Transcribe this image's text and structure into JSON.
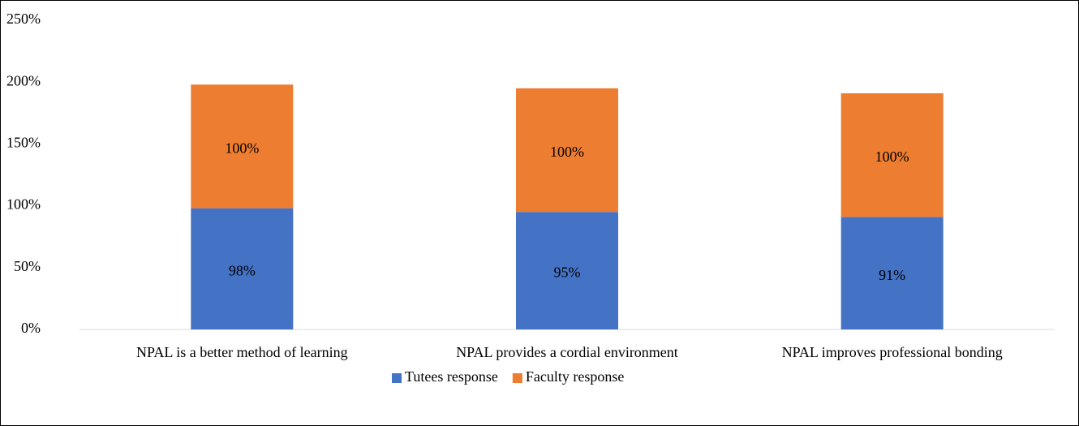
{
  "chart_data": {
    "type": "stacked_bar",
    "categories": [
      "NPAL is a better method of learning",
      "NPAL provides a cordial environment",
      "NPAL improves professional bonding"
    ],
    "series": [
      {
        "name": "Tutees response",
        "color": "#4472c4",
        "values": [
          98,
          95,
          91
        ],
        "value_labels": [
          "98%",
          "95%",
          "91%"
        ]
      },
      {
        "name": "Faculty response",
        "color": "#ed7d31",
        "values": [
          100,
          100,
          100
        ],
        "value_labels": [
          "100%",
          "100%",
          "100%"
        ]
      }
    ],
    "ylim": [
      0,
      250
    ],
    "yticks": [
      {
        "value": 0,
        "label": "0%"
      },
      {
        "value": 50,
        "label": "50%"
      },
      {
        "value": 100,
        "label": "100%"
      },
      {
        "value": 150,
        "label": "150%"
      },
      {
        "value": 200,
        "label": "200%"
      },
      {
        "value": 250,
        "label": "250%"
      }
    ],
    "grid": false,
    "legend": "bottom"
  }
}
